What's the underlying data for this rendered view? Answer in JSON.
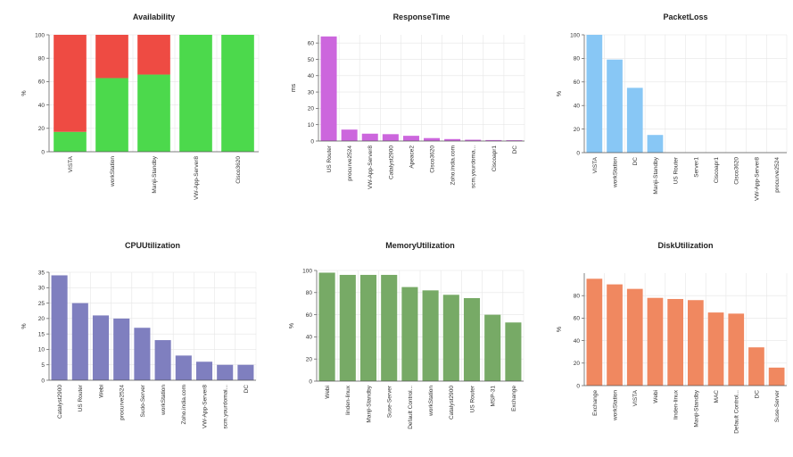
{
  "chart_data": [
    {
      "type": "bar",
      "stacked": true,
      "title": "Availability",
      "ylabel": "%",
      "ylim": [
        0,
        100
      ],
      "yticks": [
        0,
        20,
        40,
        60,
        80,
        100
      ],
      "grid": true,
      "categories": [
        "VISTA",
        "workStation",
        "Manji-Standby",
        "VW-App-Server8",
        "Cisco3620"
      ],
      "series": [
        {
          "values": [
            17,
            63,
            66,
            100,
            100
          ],
          "color": "#4cd94c"
        },
        {
          "values": [
            83,
            37,
            34,
            0,
            0
          ],
          "color": "#ee4b43"
        }
      ]
    },
    {
      "type": "bar",
      "title": "ResponseTime",
      "ylabel": "ms",
      "ylim": [
        0,
        65
      ],
      "yticks": [
        0,
        10,
        20,
        30,
        40,
        50,
        60
      ],
      "grid": true,
      "categories": [
        "US Router",
        "procurve2524",
        "VW-App-Server8",
        "Catalyst2900",
        "Apeace2",
        "Cisco3620",
        "Zoho.india.com",
        "scm.yourdoma...",
        "Ciscoapr1",
        "DC"
      ],
      "values": [
        64,
        7,
        4.5,
        4.2,
        3.2,
        1.8,
        1.2,
        0.8,
        0.6,
        0.5
      ],
      "color": "#cc66dd"
    },
    {
      "type": "bar",
      "title": "PacketLoss",
      "ylabel": "%",
      "ylim": [
        0,
        100
      ],
      "yticks": [
        0,
        20,
        40,
        60,
        80,
        100
      ],
      "grid": true,
      "categories": [
        "VISTA",
        "workStation",
        "DC",
        "Manji-Standby",
        "US Router",
        "Server1",
        "Ciscoapr1",
        "Cisco3620",
        "VW-App-Server8",
        "procurve2524"
      ],
      "values": [
        100,
        79,
        55,
        15,
        0,
        0,
        0,
        0,
        0,
        0
      ],
      "color": "#88c7f5"
    },
    {
      "type": "bar",
      "title": "CPUUtilization",
      "ylabel": "%",
      "ylim": [
        0,
        35
      ],
      "yticks": [
        0,
        5,
        10,
        15,
        20,
        25,
        30,
        35
      ],
      "grid": true,
      "categories": [
        "Catalyst2900",
        "US Router",
        "Webi",
        "procurve2524",
        "Sudo-Server",
        "workStation",
        "Zoho.india.com",
        "VW-App-Server8",
        "scm.yourdomai...",
        "DC"
      ],
      "values": [
        34,
        25,
        21,
        20,
        17,
        13,
        8,
        6,
        5,
        5
      ],
      "color": "#7f7fbf"
    },
    {
      "type": "bar",
      "title": "MemoryUtilization",
      "ylabel": "%",
      "ylim": [
        0,
        100
      ],
      "yticks": [
        0,
        20,
        40,
        60,
        80,
        100
      ],
      "grid": true,
      "categories": [
        "Webi",
        "linden-linux",
        "Manji-Standby",
        "Suse-Server",
        "Default Control...",
        "workStation",
        "Catalyst2900",
        "US Router",
        "MSP-31",
        "Exchange"
      ],
      "values": [
        98,
        96,
        96,
        96,
        85,
        82,
        78,
        75,
        60,
        53
      ],
      "color": "#77aa66"
    },
    {
      "type": "bar",
      "title": "DiskUtilization",
      "ylabel": "%",
      "ylim": [
        0,
        100
      ],
      "yticks": [
        0,
        20,
        40,
        60,
        80
      ],
      "grid": true,
      "categories": [
        "Exchange",
        "workStation",
        "VISTA",
        "Webi",
        "linden-linux",
        "Manji-Standby",
        "MAC",
        "Default Control...",
        "DC",
        "Suse-Server"
      ],
      "values": [
        95,
        90,
        86,
        78,
        77,
        76,
        65,
        64,
        34,
        16
      ],
      "color": "#f08860"
    }
  ]
}
